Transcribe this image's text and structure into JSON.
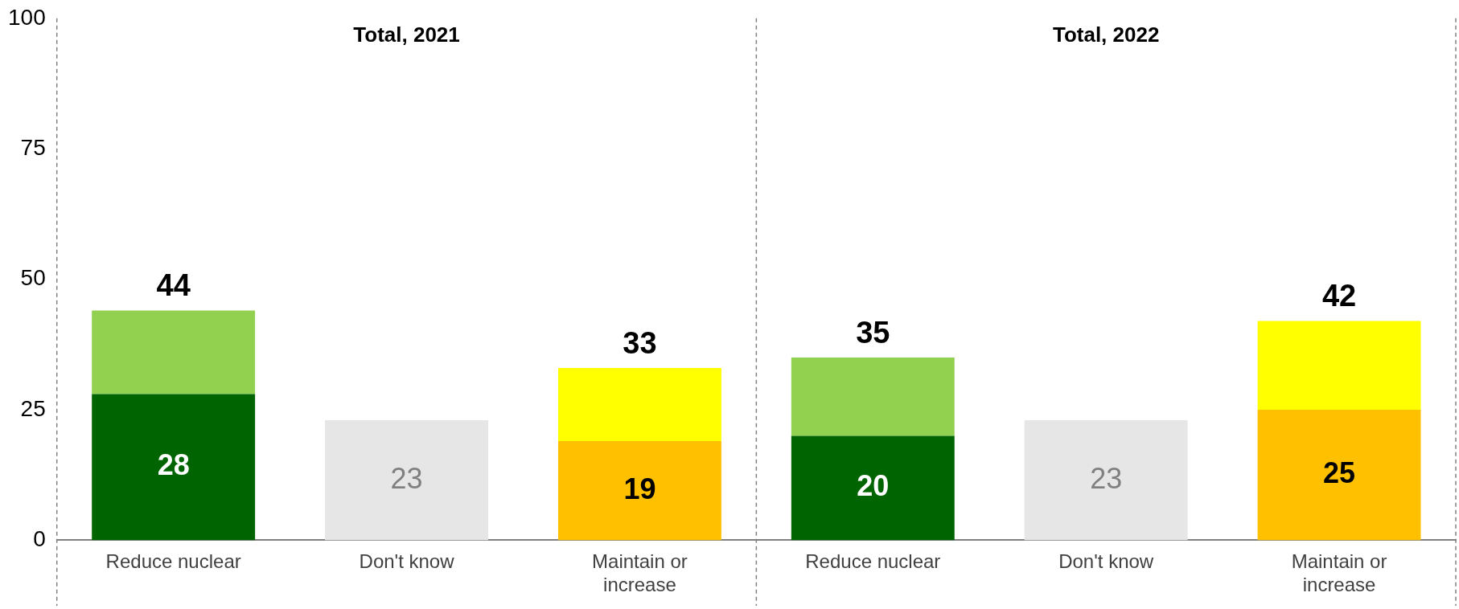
{
  "chart_data": {
    "type": "bar",
    "stacked": true,
    "categories": [
      "Reduce nuclear",
      "Don't know",
      "Maintain or increase",
      "Reduce nuclear",
      "Don't know",
      "Maintain or increase"
    ],
    "series": [
      {
        "values": [
          28,
          23,
          19,
          20,
          23,
          25
        ],
        "colors": [
          "#006400",
          "#e6e6e6",
          "#ffc000",
          "#006400",
          "#e6e6e6",
          "#ffc000"
        ],
        "value_labels": [
          "28",
          "23",
          "19",
          "20",
          "23",
          "25"
        ]
      },
      {
        "values": [
          16,
          null,
          14,
          15,
          null,
          17
        ],
        "colors": [
          "#92d050",
          "#e6e6e6",
          "#ffff00",
          "#92d050",
          "#e6e6e6",
          "#ffff00"
        ]
      }
    ],
    "totals": [
      "44",
      null,
      "33",
      "35",
      null,
      "42"
    ],
    "annotations": [
      "Total, 2021",
      "Total, 2022"
    ],
    "ylim": [
      0,
      100
    ],
    "yticks": [
      0,
      25,
      50,
      75,
      100
    ],
    "grid": false,
    "legend": false
  }
}
